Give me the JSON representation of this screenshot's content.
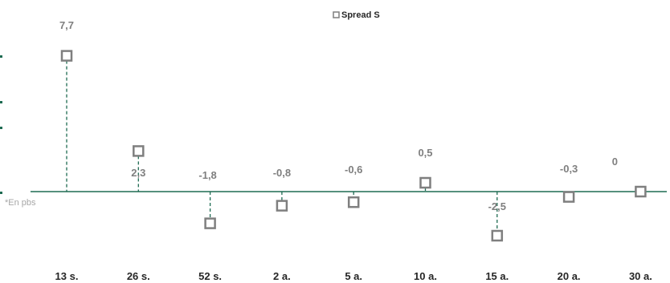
{
  "chart_data": {
    "type": "scatter",
    "categories": [
      "13 s.",
      "26 s.",
      "52 s.",
      "2 a.",
      "5 a.",
      "10 a.",
      "15 a.",
      "20 a.",
      "30 a."
    ],
    "series": [
      {
        "name": "Spread S",
        "values": [
          7.7,
          2.3,
          -1.8,
          -0.8,
          -0.6,
          0.5,
          -2.5,
          -0.3,
          0
        ],
        "labels": [
          "7,7",
          "2,3",
          "-1,8",
          "-0,8",
          "-0,6",
          "0,5",
          "-2,5",
          "-0,3",
          "0"
        ]
      }
    ],
    "legend": "top-center",
    "note": "*En pbs",
    "colors": {
      "marker": "#7f7f7f",
      "drop_line": "#1e6b52",
      "axis": "#1e6b52",
      "label": "#7f7f7f"
    }
  }
}
